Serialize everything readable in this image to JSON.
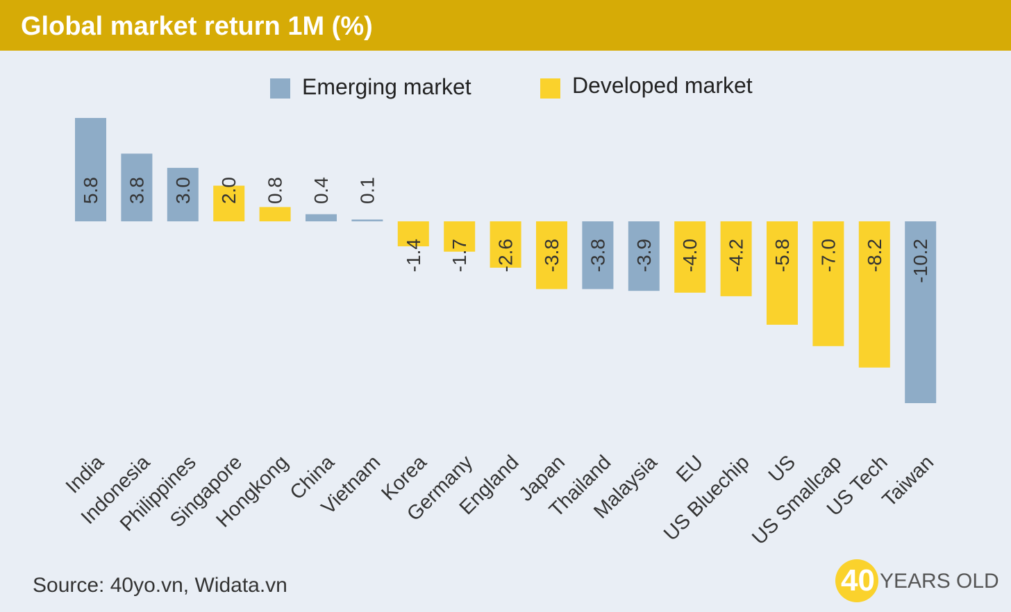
{
  "header": {
    "title": "Global market return 1M (%)"
  },
  "footer": {
    "source": "Source: 40yo.vn, Widata.vn"
  },
  "brand": {
    "number": "40",
    "text": "YEARS OLD"
  },
  "colors": {
    "emerging": "#8eacc7",
    "developed": "#fad22c",
    "header": "#d6ab06",
    "background": "#e9eef5"
  },
  "chart_data": {
    "type": "bar",
    "title": "Global market return 1M (%)",
    "xlabel": "",
    "ylabel": "",
    "legend": {
      "position": "top-center",
      "entries": [
        {
          "key": "emerging",
          "label": "Emerging market"
        },
        {
          "key": "developed",
          "label": "Developed market"
        }
      ]
    },
    "grid": false,
    "categories": [
      "India",
      "Indonesia",
      "Philippines",
      "Singapore",
      "Hongkong",
      "China",
      "Vietnam",
      "Korea",
      "Germany",
      "England",
      "Japan",
      "Thailand",
      "Malaysia",
      "EU",
      "US Bluechip",
      "US",
      "US Smallcap",
      "US Tech",
      "Taiwan"
    ],
    "values": [
      5.8,
      3.8,
      3.0,
      2.0,
      0.8,
      0.4,
      0.1,
      -1.4,
      -1.7,
      -2.6,
      -3.8,
      -3.8,
      -3.9,
      -4.0,
      -4.2,
      -5.8,
      -7.0,
      -8.2,
      -10.2
    ],
    "labels": [
      "5.8",
      "3.8",
      "3.0",
      "2.0",
      "0.8",
      "0.4",
      "0.1",
      "-1.4",
      "-1.7",
      "-2.6",
      "-3.8",
      "-3.8",
      "-3.9",
      "-4.0",
      "-4.2",
      "-5.8",
      "-7.0",
      "-8.2",
      "-10.2"
    ],
    "market": [
      "emerging",
      "emerging",
      "emerging",
      "developed",
      "developed",
      "emerging",
      "emerging",
      "developed",
      "developed",
      "developed",
      "developed",
      "emerging",
      "emerging",
      "developed",
      "developed",
      "developed",
      "developed",
      "developed",
      "emerging"
    ],
    "ylim": [
      -10.2,
      5.8
    ]
  }
}
